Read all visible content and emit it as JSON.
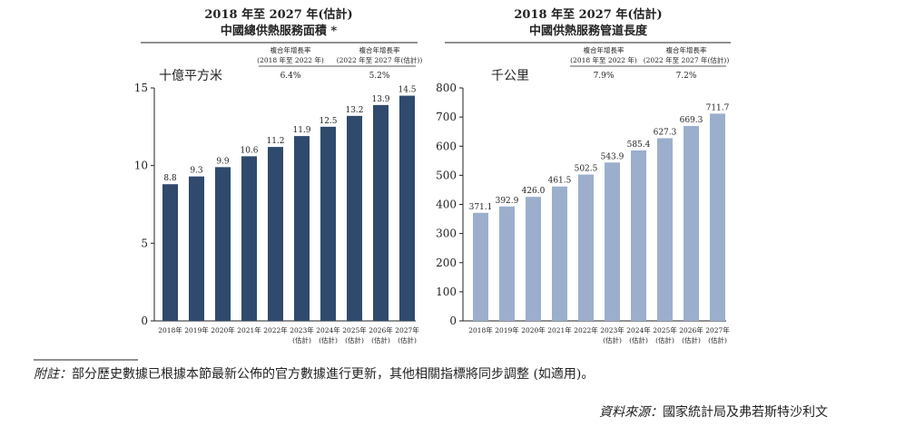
{
  "chart_data": [
    {
      "type": "bar",
      "title": "2018 年至 2027 年(估計)",
      "subtitle": "中國總供熱服務面積 *",
      "ylabel": "十億平方米",
      "ylim": [
        0,
        15
      ],
      "yticks": [
        0,
        5,
        10,
        15
      ],
      "categories": [
        "2018年",
        "2019年",
        "2020年",
        "2021年",
        "2022年",
        "2023年",
        "2024年",
        "2025年",
        "2026年",
        "2027年"
      ],
      "category_sublabels": [
        "",
        "",
        "",
        "",
        "",
        "(估計)",
        "(估計)",
        "(估計)",
        "(估計)",
        "(估計)"
      ],
      "values": [
        8.8,
        9.3,
        9.9,
        10.6,
        11.2,
        11.9,
        12.5,
        13.2,
        13.9,
        14.5
      ],
      "value_labels": [
        "8.8",
        "9.3",
        "9.9",
        "10.6",
        "11.2",
        "11.9",
        "12.5",
        "13.2",
        "13.9",
        "14.5"
      ],
      "color": "#2f4a6d",
      "cagr": [
        {
          "label": "複合年增長率",
          "period": "(2018 年至 2022 年)",
          "value": "6.4%"
        },
        {
          "label": "複合年增長率",
          "period": "(2022 年至 2027 年(估計))",
          "value": "5.2%"
        }
      ]
    },
    {
      "type": "bar",
      "title": "2018 年至 2027 年(估計)",
      "subtitle": "中國供熱服務管道長度",
      "ylabel": "千公里",
      "ylim": [
        0,
        800
      ],
      "yticks": [
        0,
        100,
        200,
        300,
        400,
        500,
        600,
        700,
        800
      ],
      "categories": [
        "2018年",
        "2019年",
        "2020年",
        "2021年",
        "2022年",
        "2023年",
        "2024年",
        "2025年",
        "2026年",
        "2027年"
      ],
      "category_sublabels": [
        "",
        "",
        "",
        "",
        "",
        "(估計)",
        "(估計)",
        "(估計)",
        "(估計)",
        "(估計)"
      ],
      "values": [
        371.1,
        392.9,
        426.0,
        461.5,
        502.5,
        543.9,
        585.4,
        627.3,
        669.3,
        711.7
      ],
      "value_labels": [
        "371.1",
        "392.9",
        "426.0",
        "461.5",
        "502.5",
        "543.9",
        "585.4",
        "627.3",
        "669.3",
        "711.7"
      ],
      "color": "#9bafcd",
      "cagr": [
        {
          "label": "複合年增長率",
          "period": "(2018 年至 2022 年)",
          "value": "7.9%"
        },
        {
          "label": "複合年增長率",
          "period": "(2022 年至 2027 年(估計))",
          "value": "7.2%"
        }
      ]
    }
  ],
  "footnote": {
    "label": "附註：",
    "text": "部分歷史數據已根據本節最新公佈的官方數據進行更新，其他相關指標將同步調整 (如適用)。"
  },
  "source": {
    "label": "資料來源：",
    "text": "國家統計局及弗若斯特沙利文"
  }
}
